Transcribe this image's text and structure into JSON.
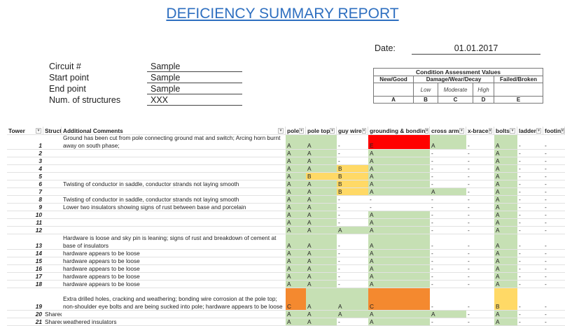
{
  "title": "DEFICIENCY SUMMARY REPORT",
  "form": {
    "fields": [
      {
        "label": "Circuit #",
        "value": "Sample"
      },
      {
        "label": "Start point",
        "value": "Sample"
      },
      {
        "label": "End point",
        "value": "Sample"
      },
      {
        "label": "Num. of structures",
        "value": "XXX"
      }
    ],
    "date_label": "Date:",
    "date_value": "01.01.2017"
  },
  "condition_table": {
    "title": "Condition Assessment Values",
    "groups": [
      "New/Good",
      "Damage/Wear/Decay",
      "Failed/Broken"
    ],
    "levels": [
      "Low",
      "Moderate",
      "High"
    ],
    "codes": [
      "A",
      "B",
      "C",
      "D",
      "E"
    ]
  },
  "colors": {
    "A": "#c6e0b4",
    "B": "#ffd966",
    "C": "#f4892f",
    "E": "#ff0000",
    "-": "#ffffff"
  },
  "table": {
    "columns": [
      "Tower",
      "Structu",
      "Additional Comments",
      "pole",
      "pole top",
      "guy wire",
      "grounding & bondin",
      "cross arm",
      "x-brace",
      "bolts",
      "ladder",
      "footin"
    ],
    "rows": [
      {
        "tower": "1",
        "structure": "",
        "comment": "Ground has been cut from pole connecting ground mat and switch; Arcing horn burnt away on south phase;",
        "values": [
          "A",
          "A",
          "-",
          "E",
          "A",
          "-",
          "A",
          "-",
          "-"
        ]
      },
      {
        "tower": "2",
        "structure": "",
        "comment": "",
        "values": [
          "A",
          "A",
          "-",
          "A",
          "-",
          "-",
          "A",
          "-",
          "-"
        ]
      },
      {
        "tower": "3",
        "structure": "",
        "comment": "",
        "values": [
          "A",
          "A",
          "-",
          "A",
          "-",
          "-",
          "A",
          "-",
          "-"
        ]
      },
      {
        "tower": "4",
        "structure": "",
        "comment": "",
        "values": [
          "A",
          "A",
          "B",
          "A",
          "-",
          "-",
          "A",
          "-",
          "-"
        ]
      },
      {
        "tower": "5",
        "structure": "",
        "comment": "",
        "values": [
          "A",
          "B",
          "B",
          "A",
          "-",
          "-",
          "A",
          "-",
          "-"
        ]
      },
      {
        "tower": "6",
        "structure": "",
        "comment": "Twisting of conductor in saddle, conductor strands not laying smooth",
        "values": [
          "A",
          "A",
          "B",
          "A",
          "-",
          "-",
          "A",
          "-",
          "-"
        ]
      },
      {
        "tower": "7",
        "structure": "",
        "comment": "",
        "values": [
          "A",
          "A",
          "B",
          "A",
          "A",
          "-",
          "A",
          "-",
          "-"
        ]
      },
      {
        "tower": "8",
        "structure": "",
        "comment": "Twisting of conductor in saddle, conductor strands not laying smooth",
        "values": [
          "A",
          "A",
          "-",
          "-",
          "-",
          "-",
          "A",
          "-",
          "-"
        ]
      },
      {
        "tower": "9",
        "structure": "",
        "comment": "Lower two insulators showing signs of rust between base and porcelain",
        "values": [
          "A",
          "A",
          "-",
          "-",
          "-",
          "-",
          "A",
          "-",
          "-"
        ]
      },
      {
        "tower": "10",
        "structure": "",
        "comment": "",
        "values": [
          "A",
          "A",
          "-",
          "A",
          "-",
          "-",
          "A",
          "-",
          "-"
        ]
      },
      {
        "tower": "11",
        "structure": "",
        "comment": "",
        "values": [
          "A",
          "A",
          "-",
          "A",
          "-",
          "-",
          "A",
          "-",
          "-"
        ]
      },
      {
        "tower": "12",
        "structure": "",
        "comment": "",
        "values": [
          "A",
          "A",
          "A",
          "A",
          "-",
          "-",
          "A",
          "-",
          "-"
        ]
      },
      {
        "tower": "13",
        "structure": "",
        "comment": "Hardware is loose and sky pin is leaning; signs of rust and breakdown of cement at base of insulators",
        "values": [
          "A",
          "A",
          "-",
          "A",
          "-",
          "-",
          "A",
          "-",
          "-"
        ]
      },
      {
        "tower": "14",
        "structure": "",
        "comment": "hardware appears to be loose",
        "values": [
          "A",
          "A",
          "-",
          "A",
          "-",
          "-",
          "A",
          "-",
          "-"
        ]
      },
      {
        "tower": "15",
        "structure": "",
        "comment": "hardware appears to be loose",
        "values": [
          "A",
          "A",
          "-",
          "A",
          "-",
          "-",
          "A",
          "-",
          "-"
        ]
      },
      {
        "tower": "16",
        "structure": "",
        "comment": "hardware appears to be loose",
        "values": [
          "A",
          "A",
          "-",
          "A",
          "-",
          "-",
          "A",
          "-",
          "-"
        ]
      },
      {
        "tower": "17",
        "structure": "",
        "comment": "hardware appears to be loose",
        "values": [
          "A",
          "A",
          "-",
          "A",
          "-",
          "-",
          "A",
          "-",
          "-"
        ]
      },
      {
        "tower": "18",
        "structure": "",
        "comment": "hardware appears to be loose",
        "values": [
          "A",
          "A",
          "-",
          "A",
          "-",
          "-",
          "A",
          "-",
          "-"
        ]
      },
      {
        "tower": "19",
        "structure": "",
        "comment": "Extra drilled holes, cracking and weathering; bonding wire corrosion at the pole top; non-shoulder eye bolts and are being sucked into pole; hardware appears to be loose",
        "values": [
          "C",
          "A",
          "A",
          "C",
          "-",
          "-",
          "B",
          "-",
          "-"
        ]
      },
      {
        "tower": "20",
        "structure": "Shared",
        "comment": "",
        "values": [
          "A",
          "A",
          "A",
          "A",
          "A",
          "-",
          "A",
          "-",
          "-"
        ]
      },
      {
        "tower": "21",
        "structure": "Shared",
        "comment": "weathered insulators",
        "values": [
          "A",
          "A",
          "-",
          "A",
          "-",
          "-",
          "A",
          "-",
          "-"
        ]
      }
    ]
  }
}
